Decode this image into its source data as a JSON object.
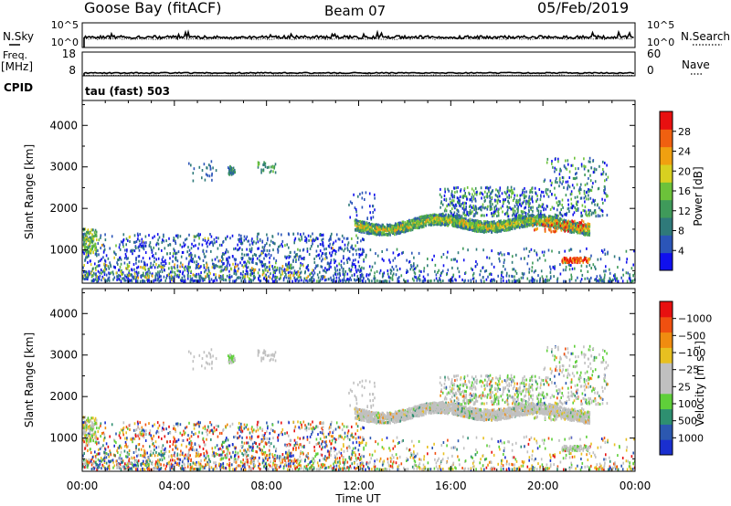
{
  "header": {
    "station": "Goose Bay (fitACF)",
    "beam": "Beam 07",
    "date": "05/Feb/2019"
  },
  "noise_panel": {
    "left_label": "N.Sky",
    "right_label": "N.Search",
    "left_ticks": [
      "10^5",
      "10^0"
    ],
    "right_ticks": [
      "10^5",
      "10^0"
    ],
    "sky_level": 0.42
  },
  "freq_panel": {
    "left_label_1": "Freq.",
    "left_label_2": "[MHz]",
    "right_label": "Nave",
    "left_ticks": [
      "18",
      "8"
    ],
    "right_ticks": [
      "60",
      "0"
    ],
    "freq_level": 0.12
  },
  "cpid": {
    "label": "CPID",
    "value": "tau (fast) 503"
  },
  "colors": {
    "power_scale": [
      "#1010ee",
      "#2b55b8",
      "#2f7a7a",
      "#3f9a5a",
      "#6cc23a",
      "#d8d020",
      "#f0a010",
      "#f06010",
      "#e81010"
    ],
    "velocity_scale": [
      "#e81010",
      "#f05010",
      "#f08c10",
      "#e8c020",
      "#c0c0c0",
      "#c0c0c0",
      "#5fcf3a",
      "#2e8f70",
      "#2c58b0",
      "#1a2fcf"
    ]
  },
  "chart_data": [
    {
      "type": "heatmap",
      "name": "power",
      "ylabel": "Slant Range [km]",
      "y_ticks": [
        1000,
        2000,
        3000,
        4000
      ],
      "ylim": [
        200,
        4600
      ],
      "xlim": [
        0,
        24
      ],
      "colorbar": {
        "label": "Power [dB]",
        "ticks": [
          "4",
          "8",
          "12",
          "16",
          "20",
          "24",
          "28"
        ],
        "range": [
          0,
          32
        ]
      },
      "features": [
        {
          "region": "near-range scatter",
          "x_range": [
            0,
            12
          ],
          "y_range": [
            200,
            1300
          ],
          "level": "low"
        },
        {
          "region": "band",
          "x_range": [
            12,
            22
          ],
          "y_range": [
            1400,
            1800
          ],
          "level": "medium"
        },
        {
          "region": "patch",
          "x_range": [
            21,
            22
          ],
          "y_range": [
            650,
            800
          ],
          "level": "high"
        }
      ]
    },
    {
      "type": "heatmap",
      "name": "velocity",
      "ylabel": "Slant Range [km]",
      "y_ticks": [
        1000,
        2000,
        3000,
        4000
      ],
      "ylim": [
        200,
        4600
      ],
      "xlim": [
        0,
        24
      ],
      "colorbar": {
        "label": "Velocity [m s^-1]",
        "ticks": [
          "-1000",
          "-500",
          "-100",
          "-25",
          "25",
          "100",
          "500",
          "1000"
        ]
      }
    }
  ],
  "x_axis": {
    "label": "Time UT",
    "ticks": [
      "00:00",
      "04:00",
      "08:00",
      "12:00",
      "16:00",
      "20:00",
      "00:00"
    ]
  }
}
